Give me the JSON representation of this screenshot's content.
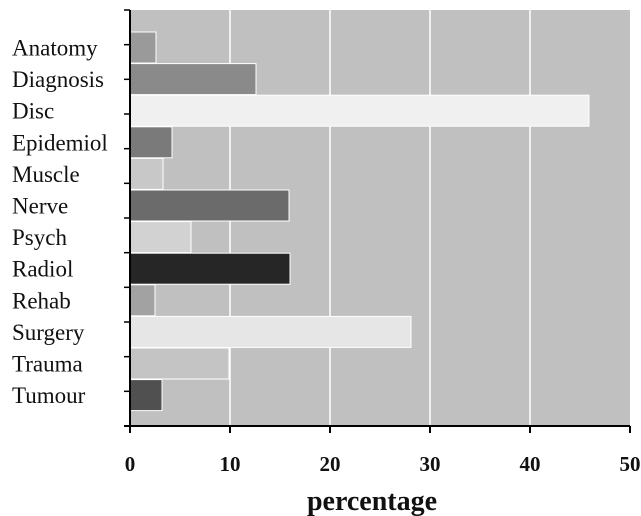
{
  "chart_data": {
    "type": "bar",
    "orientation": "horizontal",
    "categories": [
      "Anatomy",
      "Diagnosis",
      "Disc",
      "Epidemiol",
      "Muscle",
      "Nerve",
      "Psych",
      "Radiol",
      "Rehab",
      "Surgery",
      "Trauma",
      "Tumour"
    ],
    "values": [
      2.6,
      12.6,
      45.9,
      4.2,
      3.3,
      15.9,
      6.1,
      16.0,
      2.5,
      28.1,
      9.9,
      3.2
    ],
    "bar_colors": [
      "#9a9a9a",
      "#8a8a8a",
      "#f0f0f0",
      "#7a7a7a",
      "#c8c8c8",
      "#6b6b6b",
      "#d2d2d2",
      "#262626",
      "#a2a2a2",
      "#e6e6e6",
      "#c4c4c4",
      "#505050"
    ],
    "title": "",
    "xlabel": "percentage",
    "ylabel": "",
    "xlim": [
      0,
      50
    ],
    "xticks": [
      0,
      10,
      20,
      30,
      40,
      50
    ],
    "xtick_labels": [
      "0",
      "10",
      "20",
      "30",
      "40",
      "50"
    ],
    "grid": "vertical",
    "plot_background": "#c0c0c0",
    "gridline_color": "#ffffff",
    "legend": "none"
  }
}
